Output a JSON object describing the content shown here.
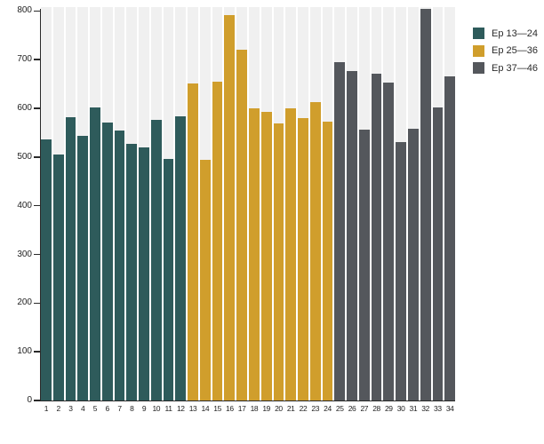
{
  "chart_data": {
    "type": "bar",
    "title": "",
    "xlabel": "",
    "ylabel": "",
    "x_labels": [
      "1",
      "2",
      "3",
      "4",
      "5",
      "6",
      "7",
      "8",
      "9",
      "10",
      "11",
      "12",
      "13",
      "14",
      "15",
      "16",
      "17",
      "18",
      "19",
      "20",
      "21",
      "22",
      "23",
      "24",
      "25",
      "26",
      "27",
      "28",
      "29",
      "30",
      "31",
      "32",
      "33",
      "34"
    ],
    "values": [
      536,
      505,
      581,
      543,
      602,
      571,
      555,
      528,
      520,
      577,
      497,
      584,
      652,
      494,
      654,
      792,
      721,
      600,
      592,
      570,
      601,
      580,
      613,
      573,
      695,
      676,
      556,
      672,
      653,
      531,
      558,
      805,
      602,
      665
    ],
    "group_of_bar": [
      0,
      0,
      0,
      0,
      0,
      0,
      0,
      0,
      0,
      0,
      0,
      0,
      1,
      1,
      1,
      1,
      1,
      1,
      1,
      1,
      1,
      1,
      1,
      1,
      2,
      2,
      2,
      2,
      2,
      2,
      2,
      2,
      2,
      2
    ],
    "groups": [
      {
        "label": "Ep 13—24",
        "color": "#2e5b5b"
      },
      {
        "label": "Ep 25—36",
        "color": "#d09e2c"
      },
      {
        "label": "Ep 37—46",
        "color": "#54575c"
      }
    ],
    "y_ticks": [
      0,
      100,
      200,
      300,
      400,
      500,
      600,
      700,
      800
    ],
    "ylim": [
      0,
      800
    ],
    "grid": "off",
    "legend_position": "top-right",
    "band_color": "#f0f0f0",
    "axis_color": "#2a2a2a",
    "note": "bar 32 exceeds the 800 axis maximum"
  }
}
